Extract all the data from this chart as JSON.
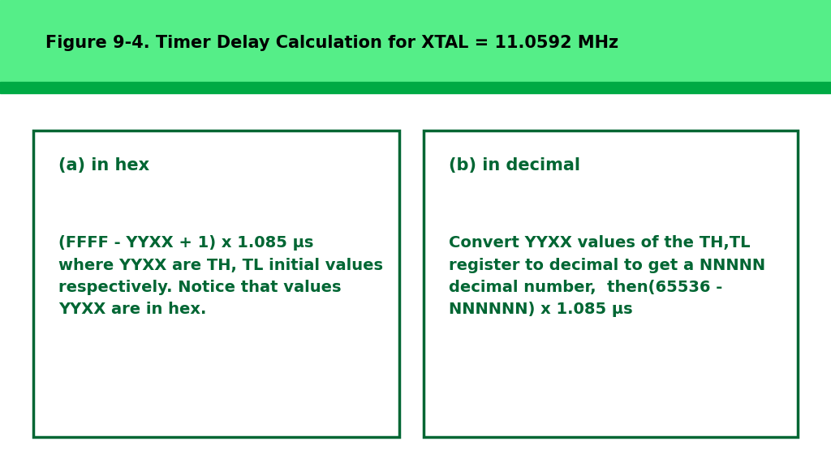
{
  "title": "Figure 9-4. Timer Delay Calculation for XTAL = 11.0592 MHz",
  "title_fontsize": 15,
  "title_color": "#000000",
  "header_bg_color": "#55EE88",
  "header_bar_color": "#00AA44",
  "body_bg_color": "#FFFFFF",
  "box_border_color": "#006633",
  "text_color": "#006633",
  "box_a_title": "(a) in hex",
  "box_a_body": "(FFFF - YYXX + 1) x 1.085 μs\nwhere YYXX are TH, TL initial values\nrespectively. Notice that values\nYYXX are in hex.",
  "box_b_title": "(b) in decimal",
  "box_b_body": "Convert YYXX values of the TH,TL\nregister to decimal to get a NNNNN\ndecimal number,  then(65536 -\nNNNNNN) x 1.085 μs",
  "figsize": [
    10.24,
    5.76
  ],
  "dpi": 100
}
